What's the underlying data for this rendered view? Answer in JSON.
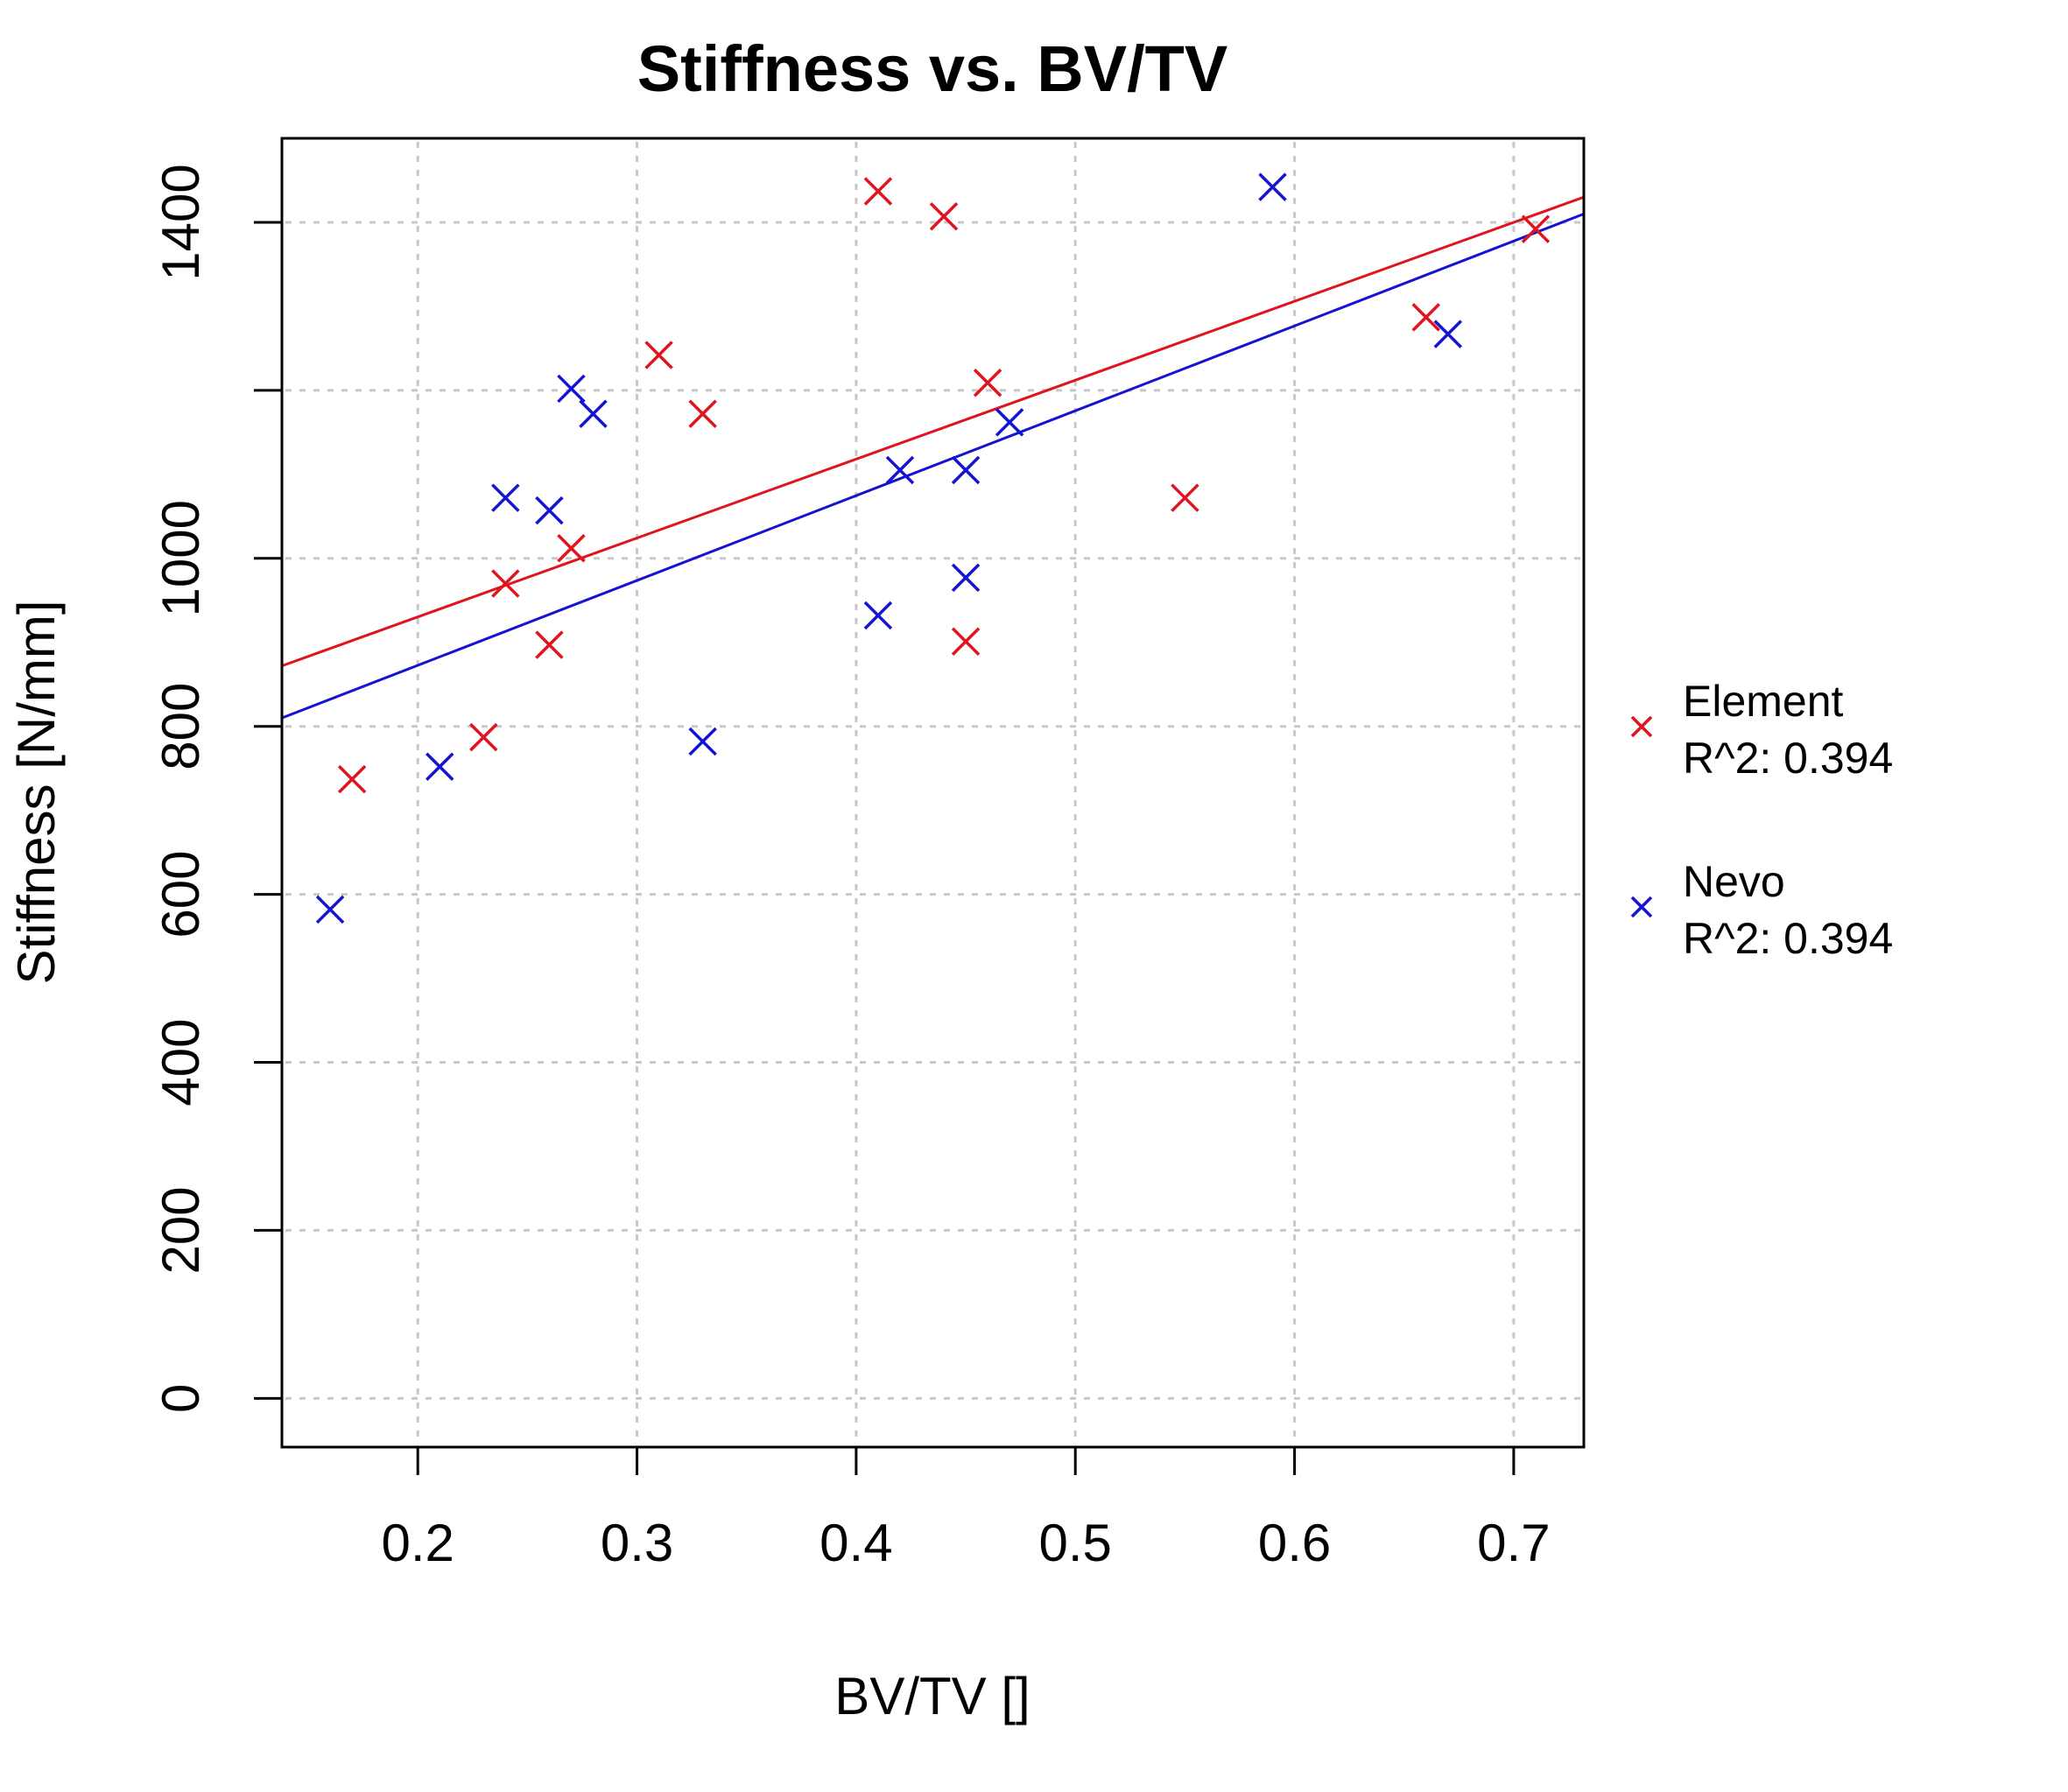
{
  "chart_data": {
    "type": "scatter",
    "title": "Stiffness vs. BV/TV",
    "xlabel": "BV/TV []",
    "ylabel": "Stiffness [N/mm]",
    "xlim": [
      0.138,
      0.732
    ],
    "ylim": [
      -58,
      1500
    ],
    "x_ticks": [
      0.2,
      0.3,
      0.4,
      0.5,
      0.6,
      0.7
    ],
    "x_tick_labels": [
      "0.2",
      "0.3",
      "0.4",
      "0.5",
      "0.6",
      "0.7"
    ],
    "y_ticks": [
      0,
      200,
      400,
      600,
      800,
      1000,
      1200,
      1400
    ],
    "y_tick_labels": [
      "0",
      "200",
      "400",
      "600",
      "800",
      "1000",
      "",
      "1400"
    ],
    "grid": true,
    "legend_position": "right",
    "marker": "x",
    "series": [
      {
        "name": "Element",
        "r2_label": "R^2: 0.394",
        "color": "#e0141e",
        "x": [
          0.17,
          0.23,
          0.24,
          0.26,
          0.27,
          0.31,
          0.33,
          0.41,
          0.44,
          0.45,
          0.46,
          0.55,
          0.66,
          0.71
        ],
        "y": [
          737,
          787,
          970,
          897,
          1012,
          1242,
          1172,
          1437,
          1407,
          901,
          1209,
          1072,
          1287,
          1392
        ],
        "fit": {
          "x": [
            0.138,
            0.732
          ],
          "y": [
            872,
            1430
          ]
        }
      },
      {
        "name": "Nevo",
        "r2_label": "R^2: 0.394",
        "color": "#1414d2",
        "x": [
          0.16,
          0.21,
          0.24,
          0.26,
          0.27,
          0.28,
          0.33,
          0.41,
          0.42,
          0.45,
          0.45,
          0.47,
          0.59,
          0.67
        ],
        "y": [
          582,
          752,
          1072,
          1057,
          1202,
          1172,
          782,
          932,
          1105,
          1105,
          977,
          1162,
          1442,
          1267
        ],
        "fit": {
          "x": [
            0.138,
            0.732
          ],
          "y": [
            810,
            1410
          ]
        }
      }
    ]
  }
}
